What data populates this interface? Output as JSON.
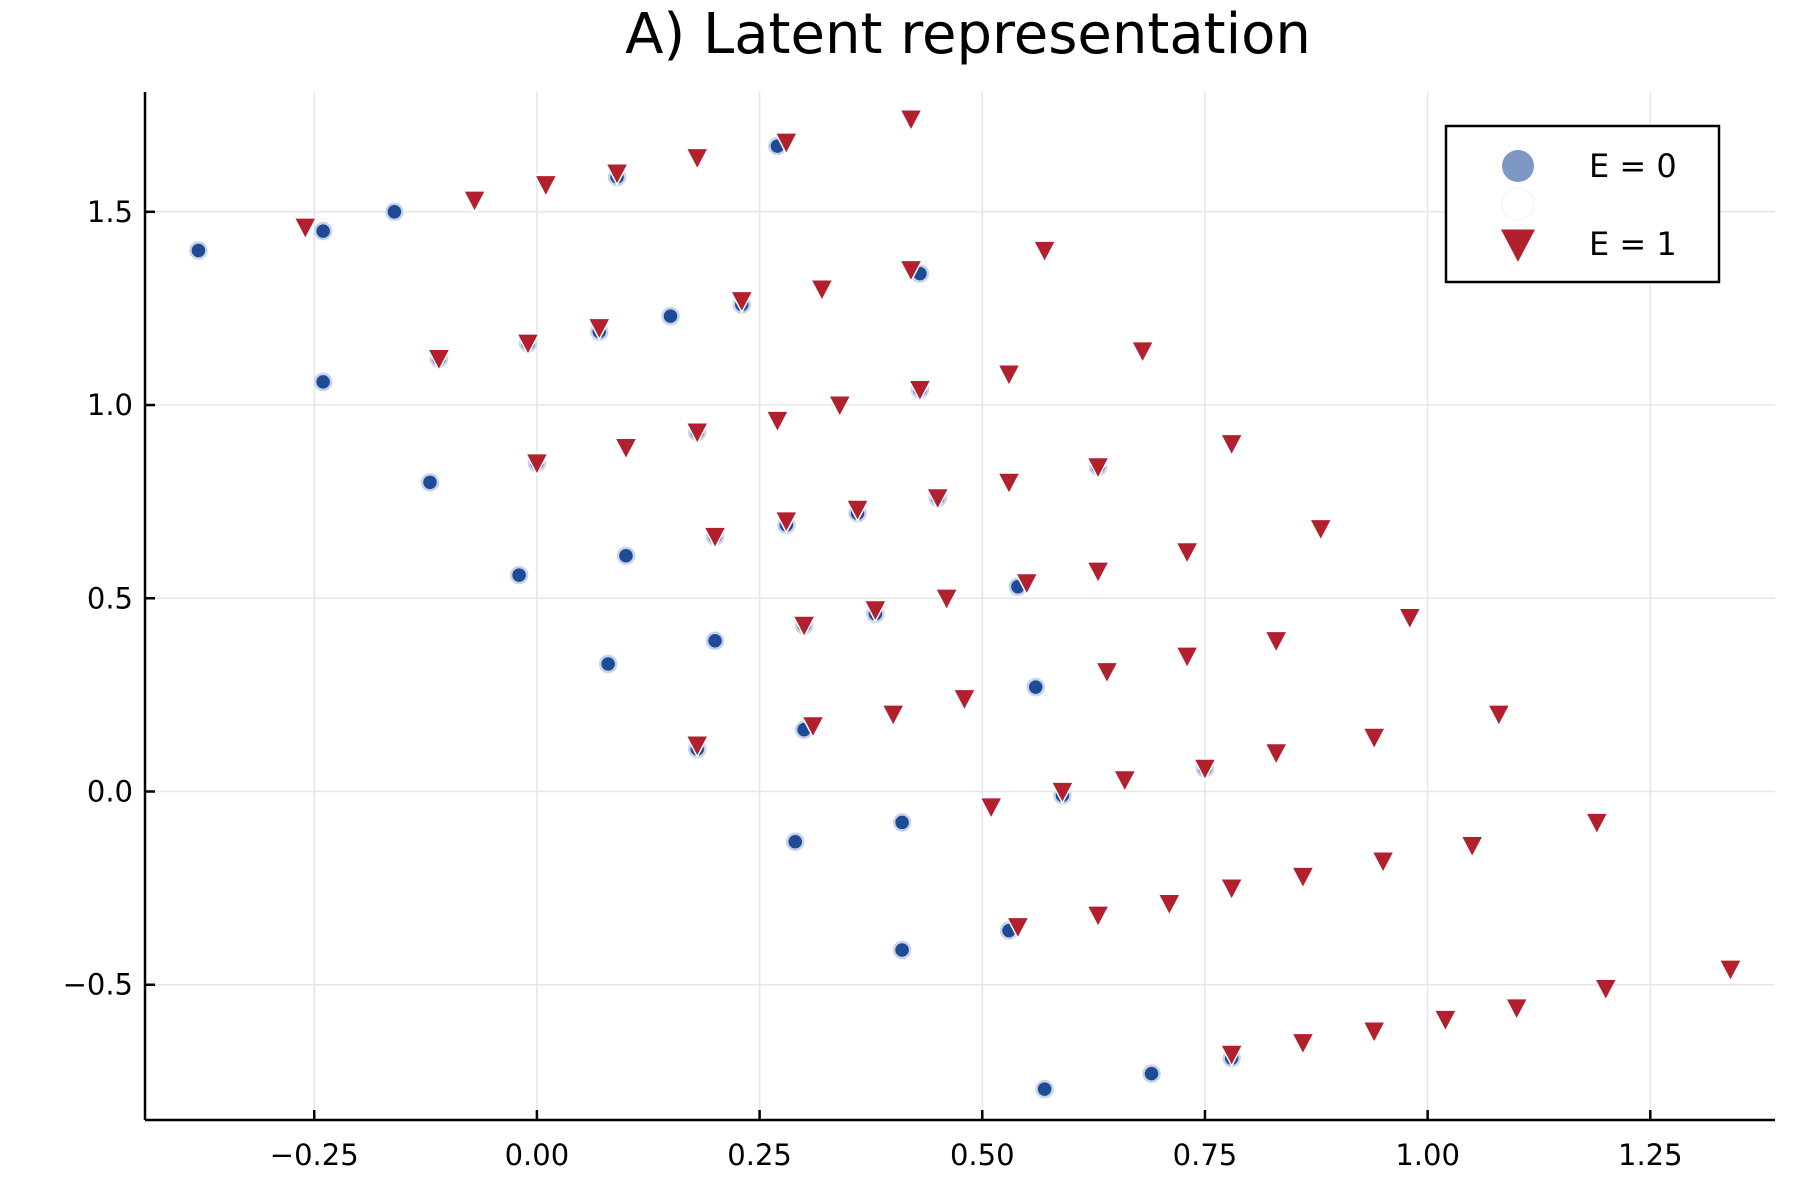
{
  "chart_data": {
    "type": "scatter",
    "title": "A) Latent representation",
    "xlabel": "",
    "ylabel": "",
    "xlim": [
      -0.44,
      1.39
    ],
    "ylim": [
      -0.85,
      1.81
    ],
    "xticks": [
      -0.25,
      0.0,
      0.25,
      0.5,
      0.75,
      1.0,
      1.25
    ],
    "xtick_labels": [
      "−0.25",
      "0.00",
      "0.25",
      "0.50",
      "0.75",
      "1.00",
      "1.25"
    ],
    "yticks": [
      -0.5,
      0.0,
      0.5,
      1.0,
      1.5
    ],
    "ytick_labels": [
      "−0.5",
      "0.0",
      "0.5",
      "1.0",
      "1.5"
    ],
    "grid": true,
    "legend_position": "top-right",
    "legend": [
      "E = 0",
      "",
      "E = 1"
    ],
    "colors": {
      "e0_fill": "#1f4a96",
      "e0_legend": "#7f97c4",
      "e0_edge": "#c7d3ea",
      "e1_fill": "#b2202e"
    },
    "series": [
      {
        "name": "E = 0",
        "marker": "circle",
        "points": [
          [
            -0.38,
            1.4
          ],
          [
            -0.16,
            1.5
          ],
          [
            -0.24,
            1.45
          ],
          [
            -0.24,
            1.06
          ],
          [
            -0.11,
            1.12
          ],
          [
            -0.12,
            0.8
          ],
          [
            -0.02,
            0.56
          ],
          [
            0.08,
            0.33
          ],
          [
            0.1,
            0.61
          ],
          [
            0.2,
            0.39
          ],
          [
            0.15,
            1.23
          ],
          [
            0.09,
            1.59
          ],
          [
            -0.01,
            1.16
          ],
          [
            0.07,
            1.19
          ],
          [
            0.0,
            0.85
          ],
          [
            0.18,
            0.93
          ],
          [
            0.2,
            0.66
          ],
          [
            0.29,
            -0.13
          ],
          [
            0.41,
            -0.08
          ],
          [
            0.41,
            -0.41
          ],
          [
            0.57,
            -0.77
          ],
          [
            0.69,
            -0.73
          ],
          [
            0.56,
            0.27
          ],
          [
            0.54,
            0.53
          ],
          [
            0.59,
            -0.01
          ],
          [
            0.18,
            0.11
          ],
          [
            0.3,
            0.16
          ],
          [
            0.3,
            0.43
          ],
          [
            0.28,
            0.69
          ],
          [
            0.45,
            0.76
          ],
          [
            0.63,
            0.84
          ],
          [
            0.43,
            1.34
          ],
          [
            0.23,
            1.26
          ],
          [
            0.43,
            1.04
          ],
          [
            0.53,
            -0.36
          ],
          [
            0.78,
            -0.69
          ],
          [
            0.75,
            0.06
          ],
          [
            0.38,
            0.46
          ],
          [
            0.36,
            0.72
          ],
          [
            0.27,
            1.67
          ]
        ]
      },
      {
        "name": "E = 1",
        "marker": "triangle-down",
        "points": [
          [
            -0.26,
            1.46
          ],
          [
            -0.07,
            1.53
          ],
          [
            0.01,
            1.57
          ],
          [
            0.09,
            1.6
          ],
          [
            0.18,
            1.64
          ],
          [
            0.28,
            1.68
          ],
          [
            0.42,
            1.74
          ],
          [
            0.57,
            1.4
          ],
          [
            0.42,
            1.35
          ],
          [
            0.32,
            1.3
          ],
          [
            0.23,
            1.27
          ],
          [
            0.07,
            1.2
          ],
          [
            -0.01,
            1.16
          ],
          [
            -0.11,
            1.12
          ],
          [
            0.68,
            1.14
          ],
          [
            0.53,
            1.08
          ],
          [
            0.43,
            1.04
          ],
          [
            0.34,
            1.0
          ],
          [
            0.27,
            0.96
          ],
          [
            0.18,
            0.93
          ],
          [
            0.1,
            0.89
          ],
          [
            0.0,
            0.85
          ],
          [
            0.78,
            0.9
          ],
          [
            0.63,
            0.84
          ],
          [
            0.53,
            0.8
          ],
          [
            0.45,
            0.76
          ],
          [
            0.36,
            0.73
          ],
          [
            0.28,
            0.7
          ],
          [
            0.2,
            0.66
          ],
          [
            0.88,
            0.68
          ],
          [
            0.73,
            0.62
          ],
          [
            0.63,
            0.57
          ],
          [
            0.55,
            0.54
          ],
          [
            0.46,
            0.5
          ],
          [
            0.38,
            0.47
          ],
          [
            0.3,
            0.43
          ],
          [
            0.98,
            0.45
          ],
          [
            0.83,
            0.39
          ],
          [
            0.73,
            0.35
          ],
          [
            0.64,
            0.31
          ],
          [
            0.48,
            0.24
          ],
          [
            0.4,
            0.2
          ],
          [
            0.31,
            0.17
          ],
          [
            0.18,
            0.12
          ],
          [
            1.08,
            0.2
          ],
          [
            0.94,
            0.14
          ],
          [
            0.83,
            0.1
          ],
          [
            0.75,
            0.06
          ],
          [
            0.66,
            0.03
          ],
          [
            0.59,
            0.0
          ],
          [
            0.51,
            -0.04
          ],
          [
            1.19,
            -0.08
          ],
          [
            1.05,
            -0.14
          ],
          [
            0.95,
            -0.18
          ],
          [
            0.86,
            -0.22
          ],
          [
            0.78,
            -0.25
          ],
          [
            0.71,
            -0.29
          ],
          [
            0.63,
            -0.32
          ],
          [
            0.54,
            -0.35
          ],
          [
            1.34,
            -0.46
          ],
          [
            1.2,
            -0.51
          ],
          [
            1.1,
            -0.56
          ],
          [
            1.02,
            -0.59
          ],
          [
            0.94,
            -0.62
          ],
          [
            0.86,
            -0.65
          ],
          [
            0.78,
            -0.68
          ]
        ]
      }
    ]
  }
}
